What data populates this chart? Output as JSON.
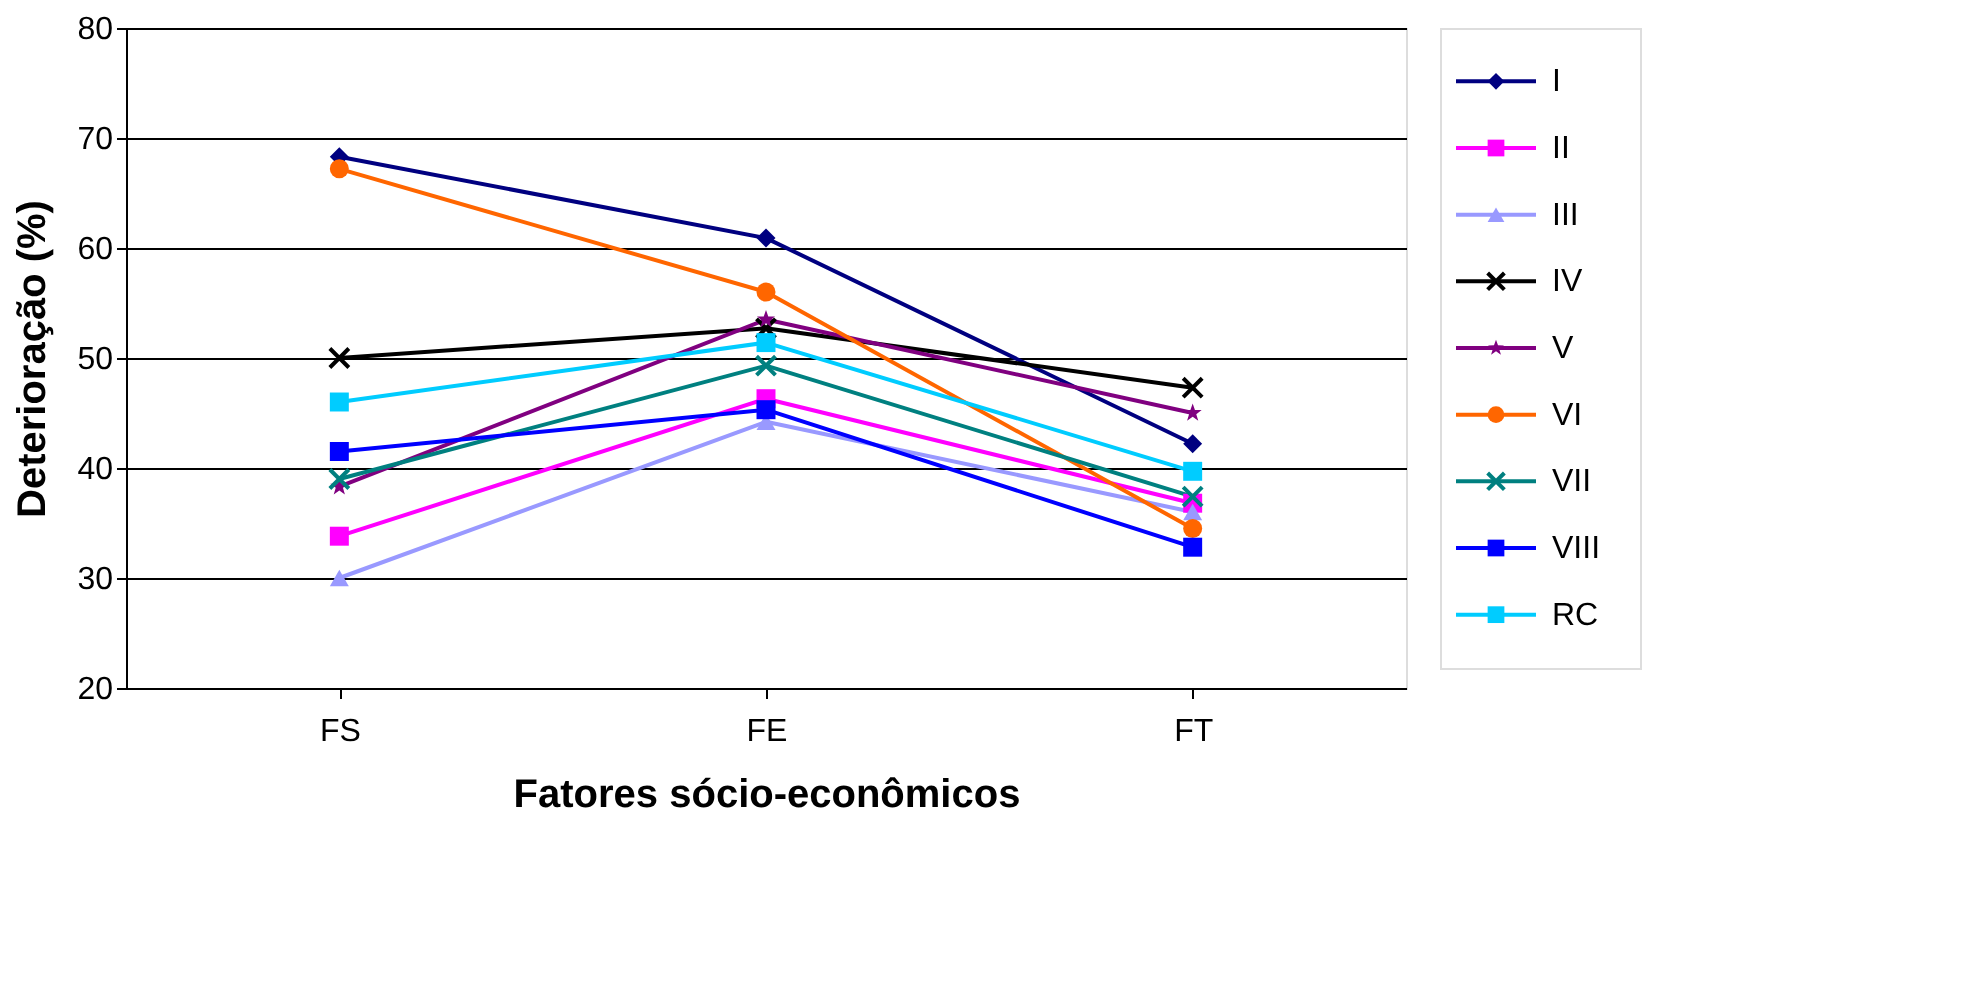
{
  "chart_data": {
    "type": "line",
    "xlabel": "Fatores sócio-econômicos",
    "ylabel": "Deterioração (%)",
    "categories": [
      "FS",
      "FE",
      "FT"
    ],
    "ylim": [
      20,
      80
    ],
    "yticks": [
      20,
      30,
      40,
      50,
      60,
      70,
      80
    ],
    "grid": "y",
    "legend": "right",
    "series": [
      {
        "name": "I",
        "color": "#000080",
        "marker": "diamond",
        "values": [
          68.3,
          60.9,
          42.2
        ]
      },
      {
        "name": "II",
        "color": "#ff00ff",
        "marker": "square",
        "values": [
          33.8,
          46.3,
          36.8
        ]
      },
      {
        "name": "III",
        "color": "#9999ff",
        "marker": "triangle",
        "values": [
          30.0,
          44.2,
          36.0
        ]
      },
      {
        "name": "IV",
        "color": "#000000",
        "marker": "cross",
        "values": [
          50.0,
          52.7,
          47.3
        ]
      },
      {
        "name": "V",
        "color": "#800080",
        "marker": "star",
        "values": [
          38.3,
          53.5,
          45.0
        ]
      },
      {
        "name": "VI",
        "color": "#ff6600",
        "marker": "circle",
        "values": [
          67.2,
          56.0,
          34.5
        ]
      },
      {
        "name": "VII",
        "color": "#008080",
        "marker": "cross",
        "values": [
          39.0,
          49.3,
          37.4
        ]
      },
      {
        "name": "VIII",
        "color": "#0000ff",
        "marker": "square",
        "values": [
          41.5,
          45.3,
          32.8
        ]
      },
      {
        "name": "RC",
        "color": "#00ccff",
        "marker": "square",
        "values": [
          46.0,
          51.4,
          39.7
        ]
      }
    ]
  }
}
